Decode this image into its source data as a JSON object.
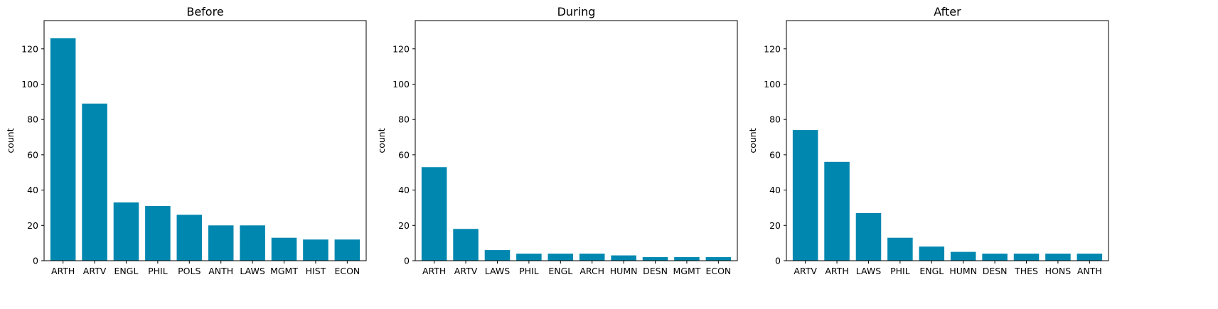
{
  "chart_data": [
    {
      "type": "bar",
      "title": "Before",
      "ylabel": "count",
      "xlabel": "",
      "ylim": [
        0,
        136
      ],
      "yticks": [
        0,
        20,
        40,
        60,
        80,
        100,
        120
      ],
      "grid": false,
      "categories": [
        "ARTH",
        "ARTV",
        "ENGL",
        "PHIL",
        "POLS",
        "ANTH",
        "LAWS",
        "MGMT",
        "HIST",
        "ECON"
      ],
      "values": [
        126,
        89,
        33,
        31,
        26,
        20,
        20,
        13,
        12,
        12
      ],
      "color": "#0087b0"
    },
    {
      "type": "bar",
      "title": "During",
      "ylabel": "count",
      "xlabel": "",
      "ylim": [
        0,
        136
      ],
      "yticks": [
        0,
        20,
        40,
        60,
        80,
        100,
        120
      ],
      "grid": false,
      "categories": [
        "ARTH",
        "ARTV",
        "LAWS",
        "PHIL",
        "ENGL",
        "ARCH",
        "HUMN",
        "DESN",
        "MGMT",
        "ECON"
      ],
      "values": [
        53,
        18,
        6,
        4,
        4,
        4,
        3,
        2,
        2,
        2
      ],
      "color": "#0087b0"
    },
    {
      "type": "bar",
      "title": "After",
      "ylabel": "count",
      "xlabel": "",
      "ylim": [
        0,
        136
      ],
      "yticks": [
        0,
        20,
        40,
        60,
        80,
        100,
        120
      ],
      "grid": false,
      "categories": [
        "ARTV",
        "ARTH",
        "LAWS",
        "PHIL",
        "ENGL",
        "HUMN",
        "DESN",
        "THES",
        "HONS",
        "ANTH"
      ],
      "values": [
        74,
        56,
        27,
        13,
        8,
        5,
        4,
        4,
        4,
        4
      ],
      "color": "#0087b0"
    }
  ]
}
